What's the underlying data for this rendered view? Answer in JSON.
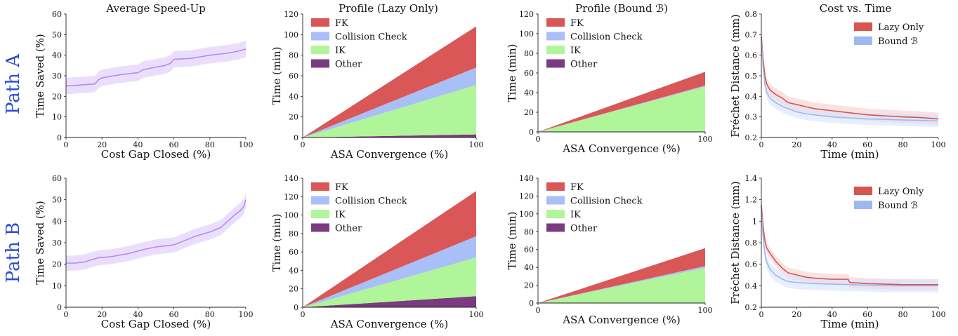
{
  "rows": [
    "Path A",
    "Path B"
  ],
  "titles": [
    "Average Speed-Up",
    "Profile (Lazy Only)",
    "Profile (Bound ℬ)",
    "Cost vs. Time"
  ],
  "colors": {
    "speedup": "#b58cf0",
    "speedup_band": "#e7d8fb",
    "fk": "#d95757",
    "collision": "#a9bff7",
    "ik": "#b0f59a",
    "other": "#7a3b80",
    "lazy": "#d9534f",
    "lazy_band": "#f6cfcf",
    "bound": "#9fb8f0",
    "bound_band": "#d7e3fb",
    "row_label": "#2a4bd7"
  },
  "chart_data": [
    {
      "type": "line",
      "panel": "speedup",
      "row": 0,
      "xlabel": "Cost Gap Closed (%)",
      "ylabel": "Time Saved (%)",
      "xlim": [
        0,
        100
      ],
      "ylim": [
        0,
        60
      ],
      "xticks": [
        0,
        20,
        40,
        60,
        80,
        100
      ],
      "yticks": [
        0,
        10,
        20,
        30,
        40,
        50,
        60
      ],
      "x": [
        0,
        8,
        16,
        18,
        20,
        30,
        40,
        43,
        46,
        55,
        58,
        60,
        70,
        80,
        90,
        96,
        100
      ],
      "y": [
        25,
        25.5,
        26,
        28,
        29,
        30.5,
        31.5,
        33,
        33.5,
        35,
        36,
        38,
        38.5,
        40,
        41,
        42,
        43
      ],
      "band": 4
    },
    {
      "type": "area",
      "panel": "profile_lazy",
      "row": 0,
      "xlabel": "ASA Convergence (%)",
      "ylabel": "Time (min)",
      "xlim": [
        0,
        100
      ],
      "ylim": [
        0,
        120
      ],
      "xticks": [
        0,
        100
      ],
      "yticks": [
        0,
        20,
        40,
        60,
        80,
        100,
        120
      ],
      "legend": [
        "FK",
        "Collision Check",
        "IK",
        "Other"
      ],
      "stack_order": [
        "Other",
        "IK",
        "Collision Check",
        "FK"
      ],
      "end_values": {
        "Other": 3,
        "IK": 48,
        "Collision Check": 17,
        "FK": 40
      }
    },
    {
      "type": "area",
      "panel": "profile_bound",
      "row": 0,
      "xlabel": "ASA Convergence (%)",
      "ylabel": "Time (min)",
      "xlim": [
        0,
        100
      ],
      "ylim": [
        0,
        120
      ],
      "xticks": [
        0,
        100
      ],
      "yticks": [
        0,
        20,
        40,
        60,
        80,
        100,
        120
      ],
      "legend": [
        "FK",
        "Collision Check",
        "IK",
        "Other"
      ],
      "stack_order": [
        "Other",
        "IK",
        "Collision Check",
        "FK"
      ],
      "end_values": {
        "Other": 0.2,
        "IK": 46,
        "Collision Check": 1,
        "FK": 14
      }
    },
    {
      "type": "line",
      "panel": "cost_time",
      "row": 0,
      "xlabel": "Time (min)",
      "ylabel": "Fréchet Distance (mm)",
      "xlim": [
        0,
        100
      ],
      "ylim": [
        0.2,
        0.8
      ],
      "xticks": [
        0,
        20,
        40,
        60,
        80,
        100
      ],
      "yticks": [
        0.2,
        0.3,
        0.4,
        0.5,
        0.6,
        0.7,
        0.8
      ],
      "legend": [
        "Lazy Only",
        "Bound ℬ"
      ],
      "series": [
        {
          "name": "Lazy Only",
          "x": [
            0,
            1,
            2,
            3,
            5,
            8,
            12,
            15,
            20,
            25,
            30,
            35,
            40,
            50,
            60,
            70,
            80,
            90,
            100
          ],
          "y": [
            0.69,
            0.58,
            0.5,
            0.46,
            0.43,
            0.41,
            0.39,
            0.37,
            0.36,
            0.35,
            0.34,
            0.335,
            0.33,
            0.32,
            0.31,
            0.305,
            0.3,
            0.297,
            0.29
          ],
          "band": 0.03
        },
        {
          "name": "Bound ℬ",
          "x": [
            0,
            1,
            2,
            3,
            5,
            8,
            12,
            15,
            20,
            25,
            30,
            35,
            40,
            50,
            60,
            70,
            80,
            90,
            100
          ],
          "y": [
            0.67,
            0.54,
            0.46,
            0.42,
            0.39,
            0.37,
            0.35,
            0.34,
            0.325,
            0.315,
            0.31,
            0.305,
            0.3,
            0.295,
            0.29,
            0.288,
            0.285,
            0.283,
            0.28
          ],
          "band": 0.03
        }
      ]
    },
    {
      "type": "line",
      "panel": "speedup",
      "row": 1,
      "xlabel": "Cost Gap Closed (%)",
      "ylabel": "Time Saved (%)",
      "xlim": [
        0,
        100
      ],
      "ylim": [
        0,
        60
      ],
      "xticks": [
        0,
        20,
        40,
        60,
        80,
        100
      ],
      "yticks": [
        0,
        10,
        20,
        30,
        40,
        50,
        60
      ],
      "x": [
        0,
        5,
        10,
        18,
        25,
        35,
        44,
        50,
        60,
        66,
        72,
        80,
        86,
        90,
        94,
        97,
        99,
        100
      ],
      "y": [
        20.5,
        20.5,
        21,
        23,
        23.5,
        25,
        27,
        28,
        29,
        31,
        33,
        35,
        37,
        40,
        43,
        45,
        47,
        50
      ],
      "band": 3.5
    },
    {
      "type": "area",
      "panel": "profile_lazy",
      "row": 1,
      "xlabel": "ASA Convergence (%)",
      "ylabel": "Time (min)",
      "xlim": [
        0,
        100
      ],
      "ylim": [
        0,
        140
      ],
      "xticks": [
        0,
        100
      ],
      "yticks": [
        0,
        20,
        40,
        60,
        80,
        100,
        120,
        140
      ],
      "legend": [
        "FK",
        "Collision Check",
        "IK",
        "Other"
      ],
      "stack_order": [
        "Other",
        "IK",
        "Collision Check",
        "FK"
      ],
      "end_values": {
        "Other": 12,
        "IK": 42,
        "Collision Check": 23,
        "FK": 49
      }
    },
    {
      "type": "area",
      "panel": "profile_bound",
      "row": 1,
      "xlabel": "ASA Convergence (%)",
      "ylabel": "Time (min)",
      "xlim": [
        0,
        100
      ],
      "ylim": [
        0,
        140
      ],
      "xticks": [
        0,
        100
      ],
      "yticks": [
        0,
        20,
        40,
        60,
        80,
        100,
        120,
        140
      ],
      "legend": [
        "FK",
        "Collision Check",
        "IK",
        "Other"
      ],
      "stack_order": [
        "Other",
        "IK",
        "Collision Check",
        "FK"
      ],
      "end_values": {
        "Other": 0.5,
        "IK": 39,
        "Collision Check": 2,
        "FK": 20
      }
    },
    {
      "type": "line",
      "panel": "cost_time",
      "row": 1,
      "xlabel": "Time (min)",
      "ylabel": "Fréchet Distance (mm)",
      "xlim": [
        0,
        100
      ],
      "ylim": [
        0.2,
        1.4
      ],
      "xticks": [
        0,
        20,
        40,
        60,
        80,
        100
      ],
      "yticks": [
        0.2,
        0.4,
        0.6,
        0.8,
        1.0,
        1.2,
        1.4
      ],
      "legend": [
        "Lazy Only",
        "Bound ℬ"
      ],
      "series": [
        {
          "name": "Lazy Only",
          "x": [
            0,
            1,
            2,
            3,
            5,
            8,
            12,
            15,
            20,
            25,
            30,
            40,
            49,
            50,
            60,
            70,
            80,
            90,
            100
          ],
          "y": [
            1.15,
            0.95,
            0.82,
            0.75,
            0.7,
            0.63,
            0.56,
            0.52,
            0.5,
            0.48,
            0.47,
            0.46,
            0.46,
            0.43,
            0.42,
            0.415,
            0.41,
            0.41,
            0.41
          ],
          "band": 0.05
        },
        {
          "name": "Bound ℬ",
          "x": [
            0,
            1,
            2,
            3,
            5,
            8,
            12,
            15,
            20,
            25,
            30,
            40,
            50,
            60,
            70,
            80,
            90,
            100
          ],
          "y": [
            1.1,
            0.85,
            0.7,
            0.62,
            0.55,
            0.5,
            0.46,
            0.44,
            0.43,
            0.425,
            0.42,
            0.415,
            0.41,
            0.405,
            0.4,
            0.4,
            0.4,
            0.4
          ],
          "band": 0.06
        }
      ]
    }
  ]
}
